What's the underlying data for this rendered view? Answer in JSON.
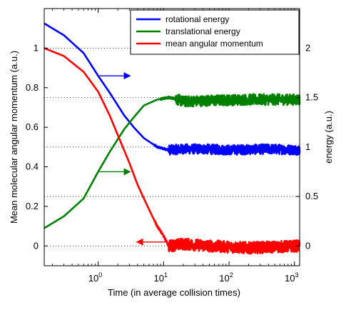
{
  "chart_data": {
    "type": "line",
    "title": "",
    "xlabel": "Time (in average collision times)",
    "ylabel": "Mean molecular angular momentum (a.u.)",
    "ylabel_right": "energy (a.u.)",
    "x_scale": "log",
    "xlim": [
      0.15,
      1200
    ],
    "ylim": [
      -0.1,
      1.2
    ],
    "ylim_right": [
      -0.2,
      2.4
    ],
    "x_ticks": [
      1,
      10,
      100,
      1000
    ],
    "x_tick_labels": [
      {
        "base": "10",
        "exp": "0"
      },
      {
        "base": "10",
        "exp": "1"
      },
      {
        "base": "10",
        "exp": "2"
      },
      {
        "base": "10",
        "exp": "3"
      }
    ],
    "y_ticks": [
      0,
      0.2,
      0.4,
      0.6,
      0.8,
      1
    ],
    "y_tick_labels": [
      "0",
      "0.2",
      "0.4",
      "0.6",
      "0.8",
      "1"
    ],
    "y_ticks_right": [
      0,
      0.5,
      1,
      1.5,
      2
    ],
    "y_tick_labels_right": [
      "0",
      "0.5",
      "1",
      "1.5",
      "2"
    ],
    "grid": "dotted horizontal lines at right-axis ticks",
    "legend_position": "top-right",
    "series": [
      {
        "name": "rotational energy",
        "axis": "right",
        "color": "#0000ff",
        "noise_after": 12,
        "noise_amplitude": 0.05,
        "points": [
          [
            0.15,
            2.25
          ],
          [
            0.3,
            2.13
          ],
          [
            0.6,
            1.95
          ],
          [
            1.0,
            1.72
          ],
          [
            1.5,
            1.55
          ],
          [
            2.5,
            1.32
          ],
          [
            3.5,
            1.2
          ],
          [
            5,
            1.09
          ],
          [
            8,
            1.0
          ],
          [
            12,
            0.97
          ],
          [
            20,
            0.98
          ],
          [
            40,
            0.98
          ],
          [
            100,
            0.97
          ],
          [
            400,
            0.98
          ],
          [
            1200,
            0.97
          ]
        ]
      },
      {
        "name": "translational energy",
        "axis": "right",
        "color": "#008000",
        "noise_after": 15,
        "noise_amplitude": 0.055,
        "points": [
          [
            0.15,
            0.18
          ],
          [
            0.3,
            0.3
          ],
          [
            0.6,
            0.48
          ],
          [
            1.0,
            0.75
          ],
          [
            1.5,
            0.95
          ],
          [
            2.5,
            1.18
          ],
          [
            3.5,
            1.3
          ],
          [
            5,
            1.42
          ],
          [
            8,
            1.48
          ],
          [
            12,
            1.5
          ],
          [
            15,
            1.49
          ],
          [
            20,
            1.46
          ],
          [
            50,
            1.47
          ],
          [
            200,
            1.48
          ],
          [
            1200,
            1.48
          ]
        ]
      },
      {
        "name": "mean angular momentum",
        "axis": "left",
        "color": "#ff0000",
        "noise_after": 12,
        "noise_amplitude": 0.03,
        "points": [
          [
            0.15,
            1.0
          ],
          [
            0.3,
            0.96
          ],
          [
            0.6,
            0.88
          ],
          [
            1.0,
            0.78
          ],
          [
            1.5,
            0.66
          ],
          [
            2.0,
            0.56
          ],
          [
            3.0,
            0.42
          ],
          [
            4.0,
            0.31
          ],
          [
            5.0,
            0.24
          ],
          [
            6.5,
            0.16
          ],
          [
            8.0,
            0.1
          ],
          [
            10.0,
            0.05
          ],
          [
            12.0,
            0.0
          ],
          [
            20,
            0.01
          ],
          [
            50,
            0.0
          ],
          [
            200,
            -0.01
          ],
          [
            1200,
            0.0
          ]
        ]
      }
    ],
    "annotations": [
      {
        "target": "rotational energy",
        "direction": "right",
        "x": 1.0,
        "y_right": 1.72,
        "color": "#0000ff"
      },
      {
        "target": "translational energy",
        "direction": "right",
        "x": 1.0,
        "y_right": 0.75,
        "color": "#008000"
      },
      {
        "target": "mean angular momentum",
        "direction": "left",
        "x": 12.0,
        "y_left": 0.02,
        "color": "#ff0000"
      }
    ]
  }
}
